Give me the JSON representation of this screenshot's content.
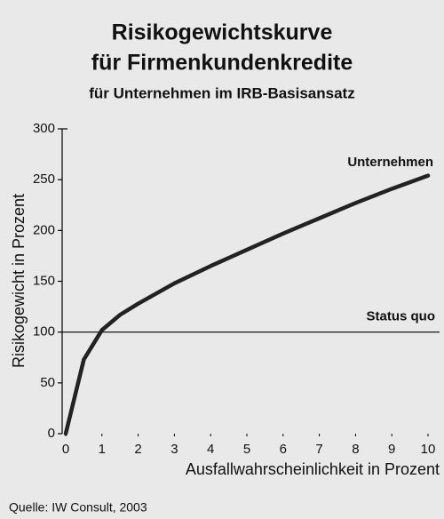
{
  "chart_data": {
    "type": "line",
    "title": "Risikogewichtskurve",
    "title_line2": "für Firmenkundenkredite",
    "subtitle": "für Unternehmen im IRB-Basisansatz",
    "x_label": "Ausfallwahrscheinlichkeit in Prozent",
    "y_label": "Risikogewicht in Prozent",
    "source": "Quelle: IW Consult, 2003",
    "x": [
      0,
      0.5,
      1,
      1.5,
      2,
      3,
      4,
      5,
      6,
      7,
      8,
      9,
      10
    ],
    "series": [
      {
        "name": "Unternehmen",
        "color": "#222222",
        "values": [
          0,
          73,
          102,
          117,
          128,
          148,
          165,
          181,
          197,
          212,
          227,
          241,
          254
        ]
      }
    ],
    "reference_line": {
      "name": "Status quo",
      "value": 100,
      "color": "#000000"
    },
    "xlim": [
      0,
      10
    ],
    "xticks": [
      0,
      1,
      2,
      3,
      4,
      5,
      6,
      7,
      8,
      9,
      10
    ],
    "ylim": [
      0,
      300
    ],
    "yticks": [
      0,
      50,
      100,
      150,
      200,
      250,
      300
    ],
    "grid": false
  }
}
